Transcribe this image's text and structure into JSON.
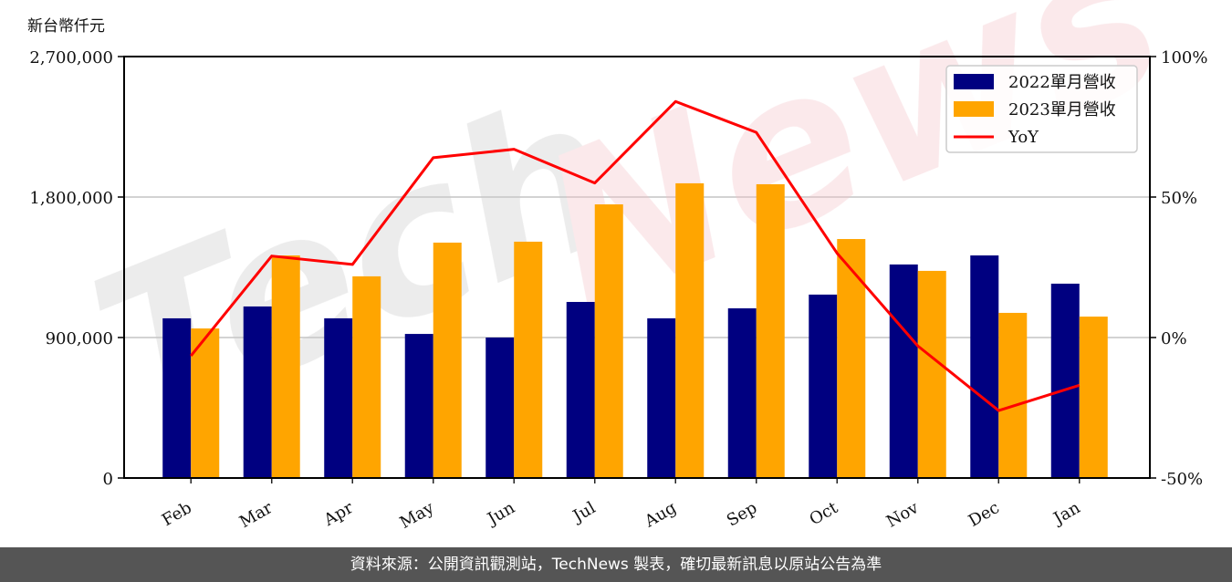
{
  "unit_label": "新台幣仟元",
  "footer": {
    "text": "資料來源：公開資訊觀測站，TechNews 製表，確切最新訊息以原站公告為準"
  },
  "watermark": "TechNews",
  "colors": {
    "series_2022": "#000080",
    "series_2023": "#FFA500",
    "yoy": "#FF0000",
    "grid": "#d3d3d3",
    "footer_bg": "#555555"
  },
  "legend": {
    "items": [
      {
        "label": "2022單月營收",
        "type": "bar",
        "color": "#000080"
      },
      {
        "label": "2023單月營收",
        "type": "bar",
        "color": "#FFA500"
      },
      {
        "label": "YoY",
        "type": "line",
        "color": "#FF0000"
      }
    ]
  },
  "chart_data": {
    "type": "bar",
    "title": "",
    "xlabel": "",
    "ylabel": "新台幣仟元",
    "categories": [
      "Feb",
      "Mar",
      "Apr",
      "May",
      "Jun",
      "Jul",
      "Aug",
      "Sep",
      "Oct",
      "Nov",
      "Dec",
      "Jan"
    ],
    "series": [
      {
        "name": "2022單月營收",
        "type": "bar",
        "axis": "left",
        "values": [
          1023000,
          1099000,
          1023000,
          923000,
          900000,
          1128000,
          1023000,
          1087000,
          1175000,
          1368000,
          1426000,
          1245000
        ]
      },
      {
        "name": "2023單月營收",
        "type": "bar",
        "axis": "left",
        "values": [
          958000,
          1426000,
          1292000,
          1508000,
          1514000,
          1753000,
          1888000,
          1882000,
          1531000,
          1327000,
          1058000,
          1034000
        ]
      },
      {
        "name": "YoY",
        "type": "line",
        "axis": "right",
        "unit": "%",
        "values": [
          -6.5,
          29,
          26,
          64,
          67,
          55,
          84,
          73,
          30,
          -3,
          -26,
          -17
        ]
      }
    ],
    "ylim": [
      0,
      2700000
    ],
    "yticks": [
      0,
      900000,
      1800000,
      2700000
    ],
    "ytick_labels": [
      "0",
      "900,000",
      "1,800,000",
      "2,700,000"
    ],
    "y2lim": [
      -50,
      100
    ],
    "y2ticks": [
      -50,
      0,
      50,
      100
    ],
    "y2tick_labels": [
      "-50%",
      "0%",
      "50%",
      "100%"
    ],
    "grid": "horizontal",
    "legend_position": "upper right"
  }
}
